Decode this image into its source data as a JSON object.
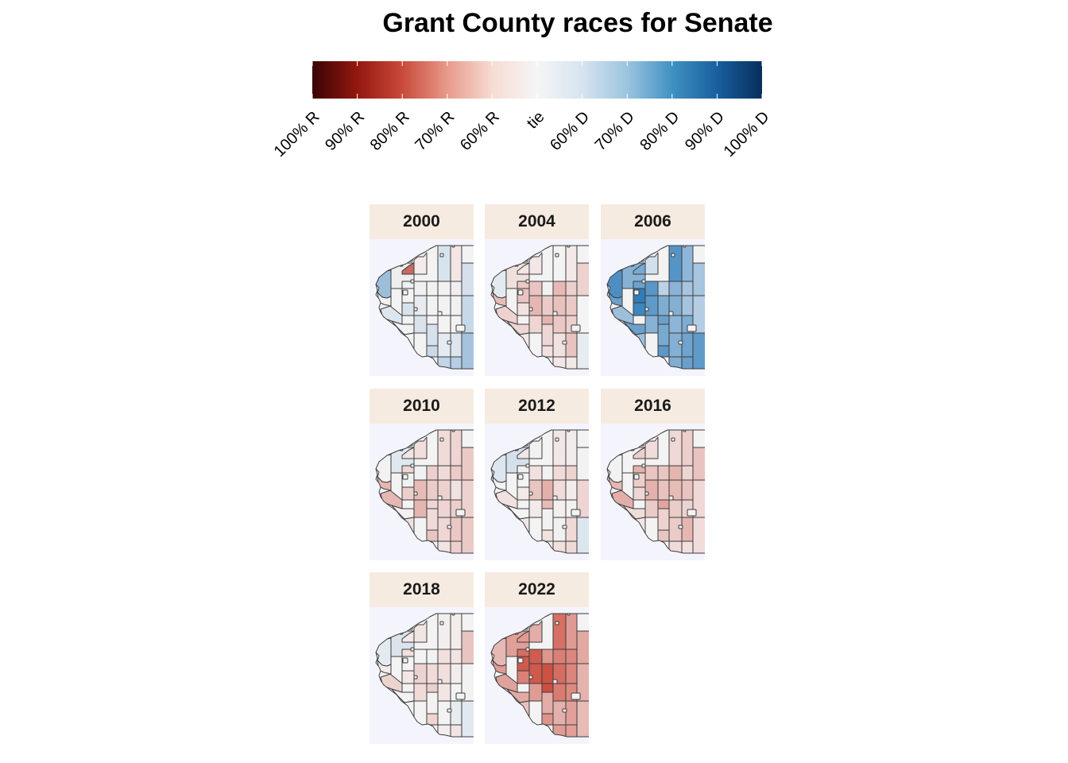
{
  "title": "Grant County races for Senate",
  "legend": {
    "ticks": [
      "100% R",
      "90% R",
      "80% R",
      "70% R",
      "60% R",
      "tie",
      "60% D",
      "70% D",
      "80% D",
      "90% D",
      "100% D"
    ],
    "colors": [
      "#3a0405",
      "#94170f",
      "#c94a3b",
      "#e79a8a",
      "#f6dcd3",
      "#f5f5f5",
      "#d6e4ef",
      "#9cc4df",
      "#3f91c3",
      "#195f9e",
      "#072f5c"
    ]
  },
  "panels": [
    {
      "year": "2000",
      "towns": {
        "A": "#9bbfdb",
        "B": "#eeeeee",
        "C": "#f3f3f3",
        "D": "#c66a62",
        "E": "#f4ebea",
        "F": "#f1f1f1",
        "G": "#d7e4ee",
        "H": "#f4e6e5",
        "I": "#edf1f4",
        "J": "#f0f0f0",
        "K": "#f2f2f2",
        "L": "#f1f1f1",
        "M": "#f0eef0",
        "N": "#f1f1f1",
        "O": "#dbe3ea",
        "P": "#e8ecf0",
        "Q": "#f3f3f3",
        "R": "#f2f2f2",
        "S": "#f1f1f1",
        "T": "#dce6ee",
        "U": "#dae3ec",
        "V": "#d6e1eb",
        "W": "#f3f3f3",
        "X": "#f2f2f2",
        "Y": "#f2f2f2",
        "Z": "#c9d9e8",
        "AA": "#e5ebf1",
        "AB": "#dde6ee",
        "AC": "#f3f3f3",
        "AD": "#c2d4e6",
        "AE": "#b6cde3",
        "AF": "#d5e0ec",
        "AG": "#c7d9e8",
        "AH": "#a6c3dd"
      }
    },
    {
      "year": "2004",
      "towns": {
        "A": "#e4ebf0",
        "B": "#f0e0dd",
        "C": "#e9c4c0",
        "D": "#f2e5e4",
        "E": "#f3e6e6",
        "F": "#f1f1f1",
        "G": "#f3f3f3",
        "H": "#f3e9e8",
        "I": "#ebcac6",
        "J": "#e9c4c0",
        "K": "#ebcbc8",
        "L": "#e6b9b5",
        "M": "#ecd0cd",
        "N": "#e7bdb9",
        "O": "#f1e1df",
        "P": "#e5b6b2",
        "Q": "#e4b4b0",
        "R": "#e8c1bd",
        "S": "#ebcac6",
        "T": "#edd2cf",
        "U": "#eed5d3",
        "V": "#eed7d5",
        "W": "#ebc8c5",
        "X": "#ecd0cd",
        "Y": "#eed6d4",
        "Z": "#f1e0df",
        "AA": "#f1e2e0",
        "AB": "#e9c3bf",
        "AC": "#f3ebea",
        "AD": "#f2e7e6",
        "AE": "#f1e9e8",
        "AF": "#edd2cf",
        "AG": "#f4f4f4",
        "AH": "#e6ecf1"
      }
    },
    {
      "year": "2006",
      "towns": {
        "A": "#4e8fc3",
        "B": "#87b2d6",
        "C": "#2f7cb8",
        "D": "#7aa9d0",
        "E": "#d1e0ec",
        "F": "#bcd2e6",
        "G": "#5594c7",
        "H": "#8eb6d8",
        "I": "#6ea2cd",
        "J": "#5a97c8",
        "K": "#7eadd2",
        "L": "#8ab4d7",
        "M": "#a7c5df",
        "N": "#6ca1cc",
        "O": "#3e86be",
        "P": "#5f9ac9",
        "Q": "#6aa0cb",
        "R": "#84b0d4",
        "S": "#a5c4df",
        "T": "#9dbfdc",
        "U": "#87b2d6",
        "V": "#78a9d0",
        "W": "#8db5d7",
        "X": "#7dadd2",
        "Y": "#6ba1cc",
        "Z": "#5c98c9",
        "AA": "#83b0d4",
        "AB": "#6fa4ce",
        "AC": "#9dbfdc",
        "AD": "#80aed3",
        "AE": "#6a9fcb",
        "AF": "#a6c5df",
        "AG": "#b5cde3",
        "AH": "#5f9ac9"
      }
    },
    {
      "year": "2010",
      "towns": {
        "A": "#f2f2f2",
        "B": "#dfe8ef",
        "C": "#f1f1f1",
        "D": "#f2e4e2",
        "E": "#f2dedc",
        "F": "#eccfcc",
        "G": "#f0dbd8",
        "H": "#eed4d2",
        "I": "#eed6d4",
        "J": "#f1f1f1",
        "K": "#eaccc8",
        "L": "#f0dad8",
        "M": "#ebcac7",
        "N": "#e6b7b2",
        "O": "#eccfcc",
        "P": "#e7bcb8",
        "Q": "#eed6d4",
        "R": "#ecd1ce",
        "S": "#f1e2e0",
        "T": "#e6b8b3",
        "U": "#e5b5b0",
        "V": "#f0dbd9",
        "W": "#eed4d2",
        "X": "#eccecb",
        "Y": "#f3f1f1",
        "Z": "#e9c5c1",
        "AA": "#efd7d5",
        "AB": "#ebc8c5",
        "AC": "#f1dfdd",
        "AD": "#f2e4e3",
        "AE": "#ecd0cd",
        "AF": "#ebcac6",
        "AG": "#edd3d0",
        "AH": "#ebc9c6"
      }
    },
    {
      "year": "2012",
      "towns": {
        "A": "#dde6ee",
        "B": "#d4e1ec",
        "C": "#f3f3f3",
        "D": "#f2e6e4",
        "E": "#f1f1f1",
        "F": "#f2f2f2",
        "G": "#f2e7e6",
        "H": "#f3ecec",
        "I": "#f1f1f1",
        "J": "#f1e0de",
        "K": "#e3afaa",
        "L": "#f0dbd9",
        "M": "#edd3d0",
        "N": "#f2f2f2",
        "O": "#f3eaea",
        "P": "#e9c5c1",
        "Q": "#e7bbb6",
        "R": "#f0dddb",
        "S": "#f3eceb",
        "T": "#f1e1df",
        "U": "#f3eaea",
        "V": "#f2f2f2",
        "W": "#f3efef",
        "X": "#f2f2f2",
        "Y": "#f3f3f3",
        "Z": "#f1e2e0",
        "AA": "#f1f1f1",
        "AB": "#f0dad8",
        "AC": "#f2e6e5",
        "AD": "#f1e0de",
        "AE": "#efd9d7",
        "AF": "#f2f2f2",
        "AG": "#eed4d2",
        "AH": "#dce6ee"
      }
    },
    {
      "year": "2016",
      "towns": {
        "A": "#f2f2f2",
        "B": "#f3f3f3",
        "C": "#eccfcc",
        "D": "#eccecb",
        "E": "#f0dcda",
        "F": "#e9c5c1",
        "G": "#efd8d6",
        "H": "#eccecb",
        "I": "#e4b2ad",
        "J": "#e9c4c0",
        "K": "#e8c2be",
        "L": "#e5b5b0",
        "M": "#eed4d2",
        "N": "#e6b8b3",
        "O": "#eed6d4",
        "P": "#e4b2ad",
        "Q": "#e0a59f",
        "R": "#e7bbb6",
        "S": "#e9c3bf",
        "T": "#e3aea9",
        "U": "#ebcbc8",
        "V": "#edd2cf",
        "W": "#eaccc8",
        "X": "#edd3d0",
        "Y": "#f0dcda",
        "Z": "#e9c5c1",
        "AA": "#ebcbc8",
        "AB": "#e6b7b2",
        "AC": "#f2e6e5",
        "AD": "#f0dbd9",
        "AE": "#f1e0de",
        "AF": "#e9c3bf",
        "AG": "#efd8d6",
        "AH": "#f0dcda"
      }
    },
    {
      "year": "2018",
      "towns": {
        "A": "#e4ebf0",
        "B": "#dbe4ec",
        "C": "#f3f3f3",
        "D": "#f3e9e8",
        "E": "#f2e6e5",
        "F": "#f2f2f2",
        "G": "#f3eeee",
        "H": "#f3eceb",
        "I": "#f1e1df",
        "J": "#f3f3f3",
        "K": "#f0dbd9",
        "L": "#f1e0de",
        "M": "#f2e4e3",
        "N": "#f3eaea",
        "O": "#f2e8e7",
        "P": "#edd2cf",
        "Q": "#ecd0cd",
        "R": "#f1dfdd",
        "S": "#f3ecec",
        "T": "#edd3d0",
        "U": "#f0dbd9",
        "V": "#f3f1f1",
        "W": "#f2e6e5",
        "X": "#f3f3f3",
        "Y": "#f2f2f2",
        "Z": "#eed4d2",
        "AA": "#f3f3f3",
        "AB": "#e9ecef",
        "AC": "#f3f3f3",
        "AD": "#f3eeee",
        "AE": "#f2e4e3",
        "AF": "#e9c5c1",
        "AG": "#f2f2f2",
        "AH": "#e1e8ef"
      }
    },
    {
      "year": "2022",
      "towns": {
        "A": "#e6b9b5",
        "B": "#e19f98",
        "C": "#d05a4d",
        "D": "#e19b94",
        "E": "#e3ada8",
        "F": "#de978f",
        "G": "#d66f64",
        "H": "#df9b93",
        "I": "#d76e63",
        "J": "#d05c4f",
        "K": "#cd5244",
        "L": "#da7f76",
        "M": "#dc877e",
        "N": "#e09c95",
        "O": "#da8178",
        "P": "#cf594c",
        "Q": "#cb4e40",
        "R": "#d66d62",
        "S": "#dc857c",
        "T": "#e0a29c",
        "U": "#df9c95",
        "V": "#e3aca6",
        "W": "#d97b70",
        "X": "#dd8a81",
        "Y": "#e3aaa4",
        "Z": "#de938b",
        "AA": "#e4b0ab",
        "AB": "#e1a19a",
        "AC": "#e8c1bd",
        "AD": "#e09c95",
        "AE": "#e19f98",
        "AF": "#e3a8a2",
        "AG": "#e5b3ae",
        "AH": "#e7bbb6"
      }
    }
  ]
}
